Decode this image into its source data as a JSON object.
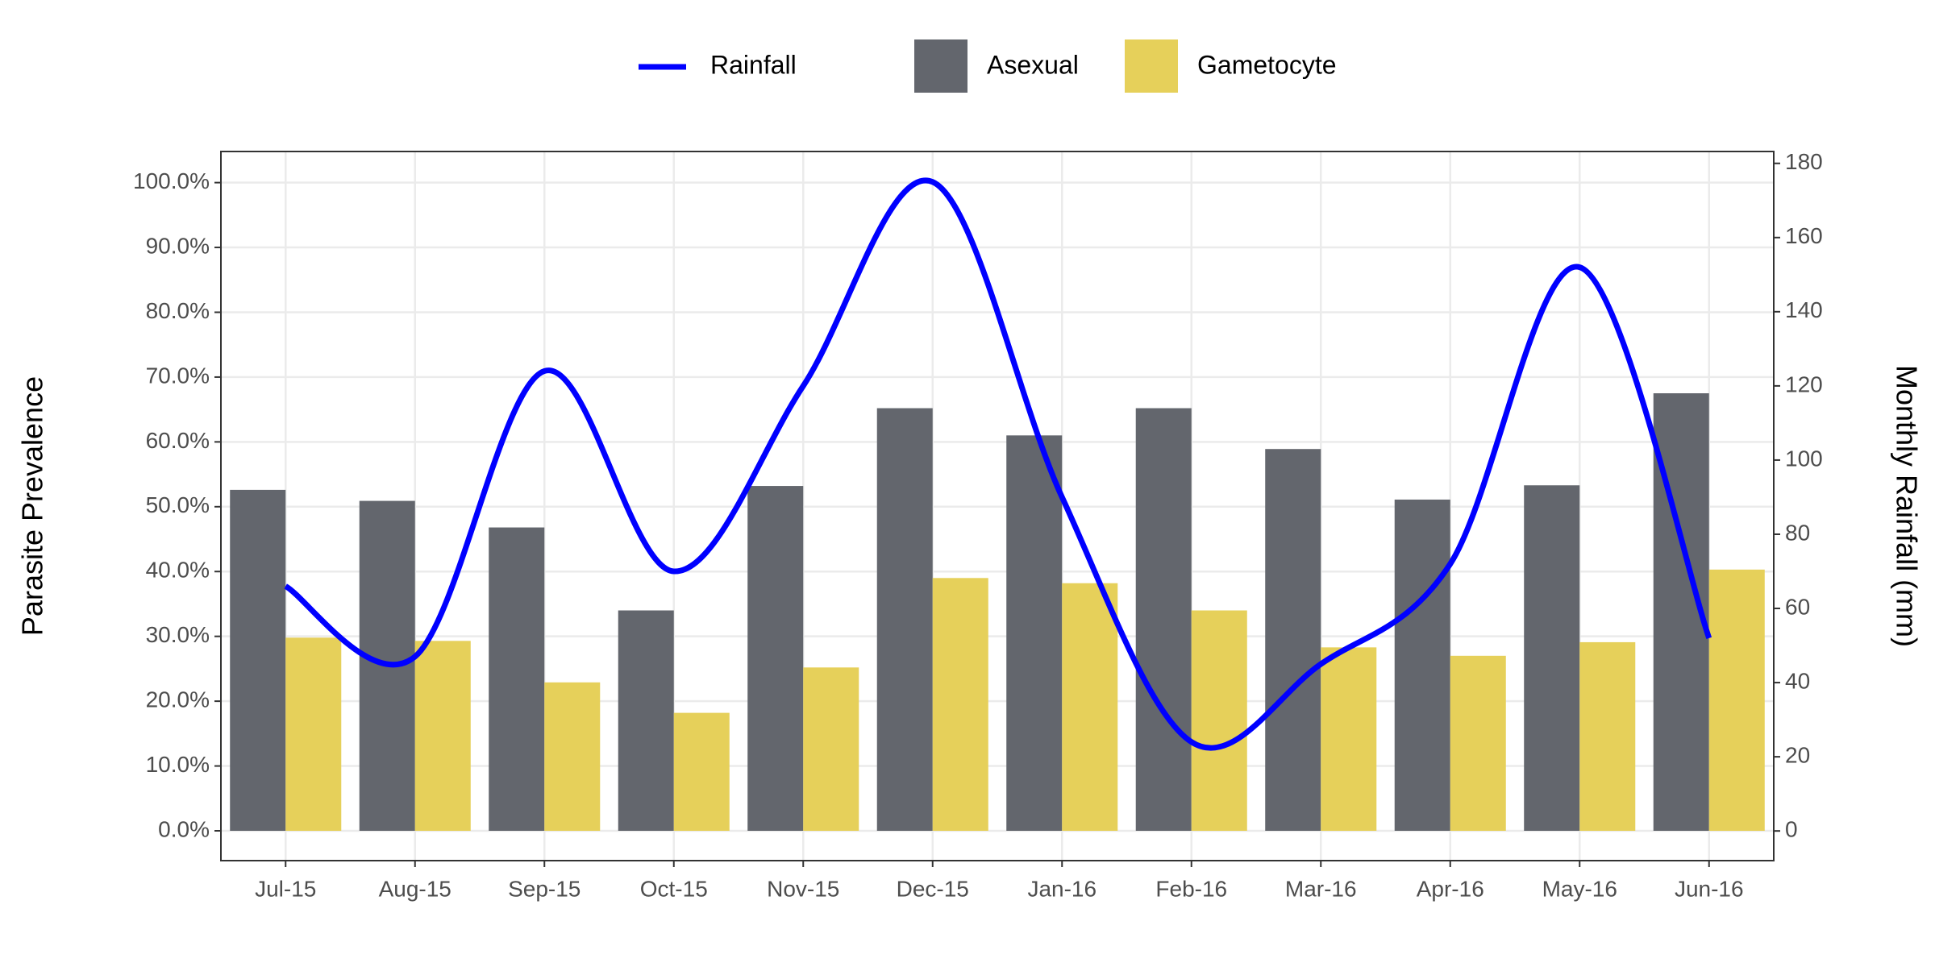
{
  "chart_data": {
    "type": "bar",
    "categories": [
      "Jul-15",
      "Aug-15",
      "Sep-15",
      "Oct-15",
      "Nov-15",
      "Dec-15",
      "Jan-16",
      "Feb-16",
      "Mar-16",
      "Apr-16",
      "May-16",
      "Jun-16"
    ],
    "series": [
      {
        "name": "Rainfall",
        "type": "line",
        "axis": "y2",
        "color": "#0000ff",
        "values": [
          66,
          47,
          124,
          70,
          120,
          175,
          90,
          24,
          45,
          72,
          152,
          52
        ]
      },
      {
        "name": "Asexual",
        "type": "bar",
        "color": "#63666d",
        "values": [
          52.6,
          50.9,
          46.8,
          34.0,
          53.2,
          65.2,
          61.0,
          65.2,
          58.9,
          51.1,
          53.3,
          67.5
        ]
      },
      {
        "name": "Gametocyte",
        "type": "bar",
        "color": "#e6d05a",
        "values": [
          29.8,
          29.3,
          22.9,
          18.2,
          25.2,
          39.0,
          38.2,
          34.0,
          28.3,
          27.0,
          29.1,
          40.3
        ]
      }
    ],
    "y_label": "Parasite Prevalence",
    "y2_label": "Monthly Rainfall (mm)",
    "ylim": [
      -4.6,
      104.8
    ],
    "yticks": [
      {
        "value": 0,
        "label": "0.0%"
      },
      {
        "value": 10,
        "label": "10.0%"
      },
      {
        "value": 20,
        "label": "20.0%"
      },
      {
        "value": 30,
        "label": "30.0%"
      },
      {
        "value": 40,
        "label": "40.0%"
      },
      {
        "value": 50,
        "label": "50.0%"
      },
      {
        "value": 60,
        "label": "60.0%"
      },
      {
        "value": 70,
        "label": "70.0%"
      },
      {
        "value": 80,
        "label": "80.0%"
      },
      {
        "value": 90,
        "label": "90.0%"
      },
      {
        "value": 100,
        "label": "100.0%"
      }
    ],
    "y2lim": [
      -8.0,
      183.2
    ],
    "y2ticks": [
      0,
      20,
      40,
      60,
      80,
      100,
      120,
      140,
      160,
      180
    ],
    "grid": true,
    "legend": "top"
  }
}
